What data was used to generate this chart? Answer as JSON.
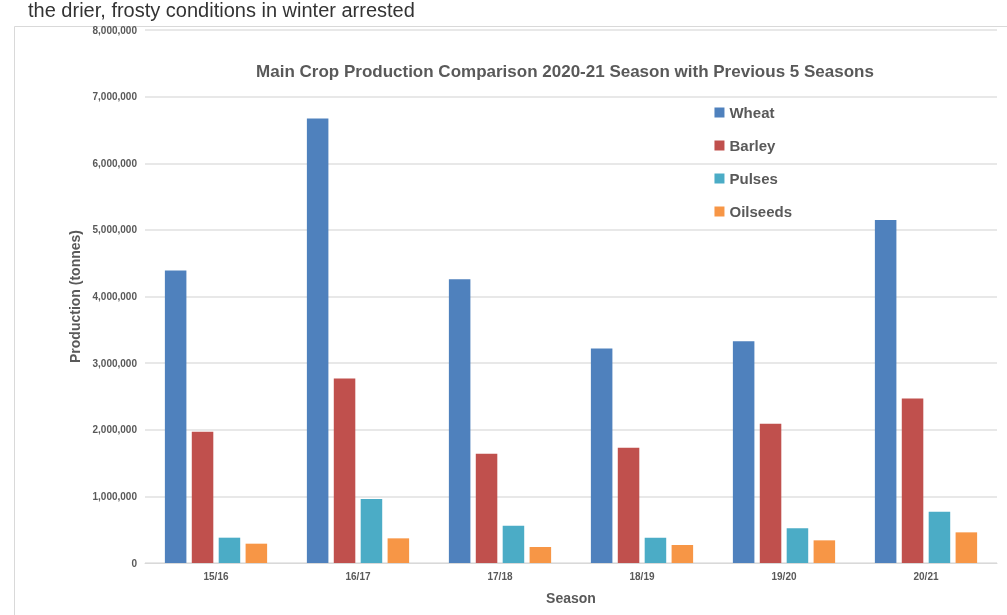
{
  "chart_data": {
    "type": "bar",
    "title": "Main Crop Production Comparison 2020-21 Season with Previous 5 Seasons",
    "xlabel": "Season",
    "ylabel": "Production (tonnes)",
    "annotations": [
      "the drier, frosty conditions in winter arrested"
    ],
    "categories": [
      "15/16",
      "16/17",
      "17/18",
      "18/19",
      "19/20",
      "20/21"
    ],
    "series": [
      {
        "name": "Wheat",
        "color": "#4f81bd",
        "values": [
          4390000,
          6670000,
          4260000,
          3220000,
          3330000,
          5150000
        ]
      },
      {
        "name": "Barley",
        "color": "#c0504d",
        "values": [
          1970000,
          2770000,
          1640000,
          1730000,
          2090000,
          2470000
        ]
      },
      {
        "name": "Pulses",
        "color": "#4bacc6",
        "values": [
          380000,
          960000,
          560000,
          380000,
          520000,
          770000
        ]
      },
      {
        "name": "Oilseeds",
        "color": "#f79646",
        "values": [
          290000,
          370000,
          240000,
          270000,
          340000,
          460000
        ]
      }
    ],
    "ylim": [
      0,
      8000000
    ],
    "yticks": [
      0,
      {
        "value": 1000000,
        "label": "1,000,000"
      },
      {
        "value": 2000000,
        "label": "2,000,000"
      },
      {
        "value": 3000000,
        "label": "3,000,000"
      },
      {
        "value": 4000000,
        "label": "4,000,000"
      },
      {
        "value": 5000000,
        "label": "5,000,000"
      },
      {
        "value": 6000000,
        "label": "6,000,000"
      },
      {
        "value": 7000000,
        "label": "7,000,000"
      },
      {
        "value": 8000000,
        "label": "8,000,000"
      }
    ],
    "grid": "y",
    "legend": "top right"
  }
}
